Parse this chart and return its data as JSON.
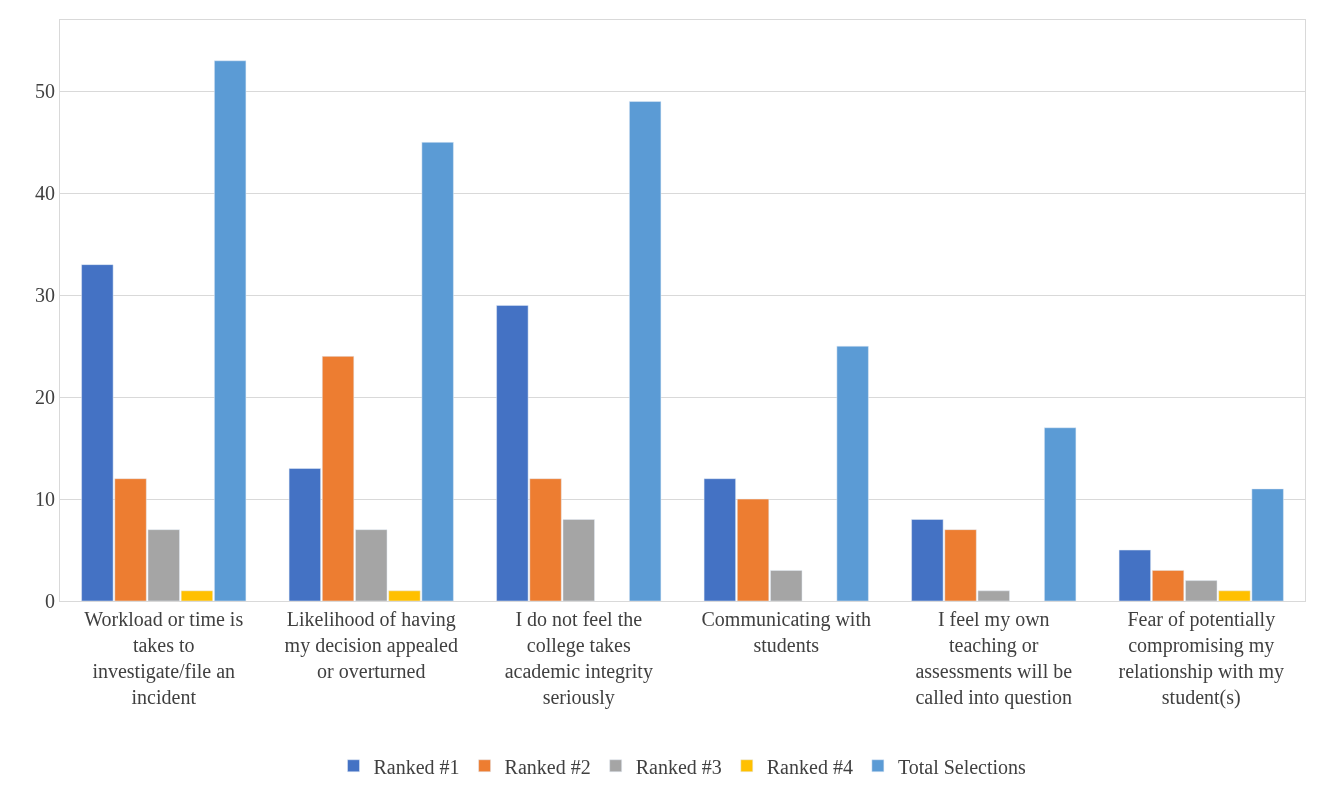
{
  "chart_data": {
    "type": "bar",
    "categories": [
      "Workload or time is takes to investigate/file an incident",
      "Likelihood of having my decision appealed or overturned",
      "I do not feel the college takes academic integrity seriously",
      "Communicating with students",
      "I feel my own teaching or assessments will be called into question",
      "Fear of potentially compromising my relationship with my student(s)"
    ],
    "series": [
      {
        "name": "Ranked #1",
        "color": "#4472c4",
        "values": [
          33,
          13,
          29,
          12,
          8,
          5
        ]
      },
      {
        "name": "Ranked #2",
        "color": "#ed7d31",
        "values": [
          12,
          24,
          12,
          10,
          7,
          3
        ]
      },
      {
        "name": "Ranked #3",
        "color": "#a5a5a5",
        "values": [
          7,
          7,
          8,
          3,
          1,
          2
        ]
      },
      {
        "name": "Ranked #4",
        "color": "#ffc000",
        "values": [
          1,
          1,
          null,
          null,
          null,
          1
        ]
      },
      {
        "name": "Total Selections",
        "color": "#5b9bd5",
        "values": [
          53,
          45,
          49,
          25,
          17,
          11
        ]
      }
    ],
    "ylim": [
      0,
      57
    ],
    "yticks": [
      0,
      10,
      20,
      30,
      40,
      50
    ],
    "grid": "y",
    "legend": "bottom"
  }
}
